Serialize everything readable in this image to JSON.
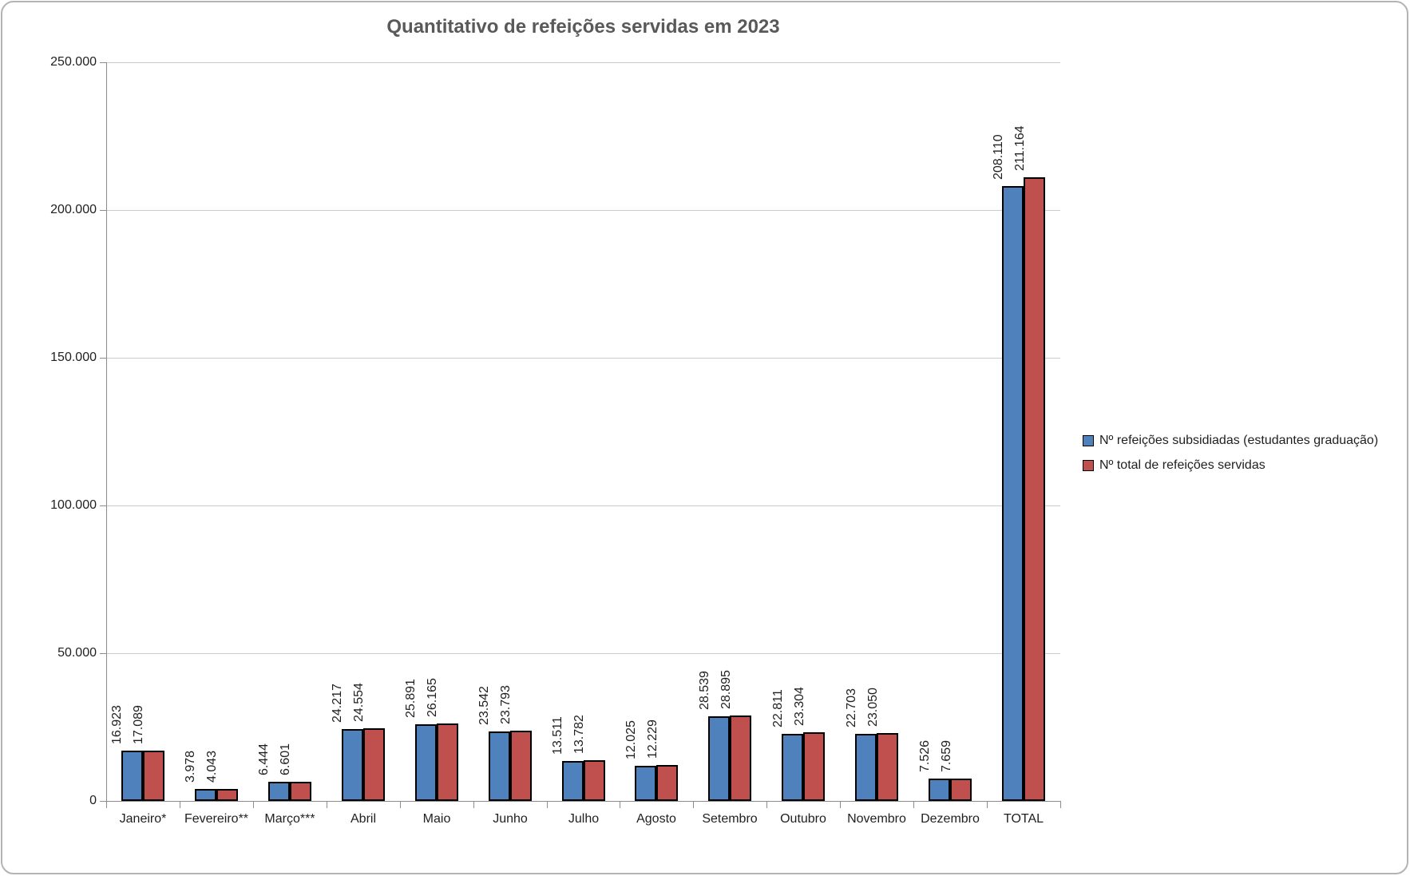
{
  "chart_data": {
    "type": "bar",
    "title": "Quantitativo de refeições servidas em 2023",
    "categories": [
      "Janeiro*",
      "Fevereiro**",
      "Março***",
      "Abril",
      "Maio",
      "Junho",
      "Julho",
      "Agosto",
      "Setembro",
      "Outubro",
      "Novembro",
      "Dezembro",
      "TOTAL"
    ],
    "series": [
      {
        "name": "Nº refeições subsidiadas (estudantes graduação)",
        "color": "#4F81BD",
        "values": [
          16923,
          3978,
          6444,
          24217,
          25891,
          23542,
          13511,
          12025,
          28539,
          22811,
          22703,
          7526,
          208110
        ],
        "labels": [
          "16.923",
          "3.978",
          "6.444",
          "24.217",
          "25.891",
          "23.542",
          "13.511",
          "12.025",
          "28.539",
          "22.811",
          "22.703",
          "7.526",
          "208.110"
        ]
      },
      {
        "name": "Nº total de refeições servidas",
        "color": "#C0504D",
        "values": [
          17089,
          4043,
          6601,
          24554,
          26165,
          23793,
          13782,
          12229,
          28895,
          23304,
          23050,
          7659,
          211164
        ],
        "labels": [
          "17.089",
          "4.043",
          "6.601",
          "24.554",
          "26.165",
          "23.793",
          "13.782",
          "12.229",
          "28.895",
          "23.304",
          "23.050",
          "7.659",
          "211.164"
        ]
      }
    ],
    "y_axis": {
      "min": 0,
      "max": 250000,
      "step": 50000,
      "tick_labels": [
        "0",
        "50.000",
        "100.000",
        "150.000",
        "200.000",
        "250.000"
      ]
    },
    "legend_position": "right",
    "grid": true,
    "colors": {
      "title": "#595959",
      "axis_line": "#8c8c8c",
      "gridline": "#cccccc",
      "text": "#1f1f1f",
      "bar_border": "#000000",
      "chart_border": "#b3b3b3"
    }
  }
}
